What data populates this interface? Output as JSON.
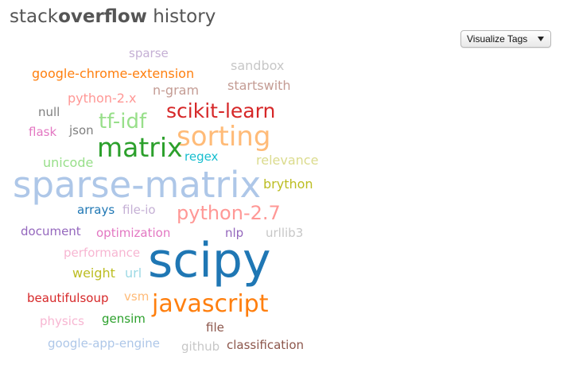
{
  "header": {
    "title_prefix": "stack",
    "title_bold": "overflow",
    "title_suffix": " history"
  },
  "controls": {
    "visualize_label": "Visualize Tags"
  },
  "tags": [
    {
      "text": "sparse",
      "color": "#c5b0d5"
    },
    {
      "text": "sandbox",
      "color": "#c7c7c7"
    },
    {
      "text": "google-chrome-extension",
      "color": "#ff7f0e"
    },
    {
      "text": "startswith",
      "color": "#c49c94"
    },
    {
      "text": "python-2.x",
      "color": "#ff9896"
    },
    {
      "text": "n-gram",
      "color": "#c49c94"
    },
    {
      "text": "null",
      "color": "#7f7f7f"
    },
    {
      "text": "scikit-learn",
      "color": "#d62728"
    },
    {
      "text": "tf-idf",
      "color": "#98df8a"
    },
    {
      "text": "flask",
      "color": "#e377c2"
    },
    {
      "text": "json",
      "color": "#7f7f7f"
    },
    {
      "text": "sorting",
      "color": "#ffbb78"
    },
    {
      "text": "matrix",
      "color": "#2ca02c"
    },
    {
      "text": "regex",
      "color": "#17becf"
    },
    {
      "text": "relevance",
      "color": "#dbdb8d"
    },
    {
      "text": "unicode",
      "color": "#98df8a"
    },
    {
      "text": "sparse-matrix",
      "color": "#aec7e8"
    },
    {
      "text": "brython",
      "color": "#bcbd22"
    },
    {
      "text": "arrays",
      "color": "#1f77b4"
    },
    {
      "text": "file-io",
      "color": "#c5b0d5"
    },
    {
      "text": "python-2.7",
      "color": "#ff9896"
    },
    {
      "text": "document",
      "color": "#9467bd"
    },
    {
      "text": "optimization",
      "color": "#e377c2"
    },
    {
      "text": "nlp",
      "color": "#9467bd"
    },
    {
      "text": "urllib3",
      "color": "#c7c7c7"
    },
    {
      "text": "performance",
      "color": "#f7b6d2"
    },
    {
      "text": "scipy",
      "color": "#1f77b4"
    },
    {
      "text": "weight",
      "color": "#bcbd22"
    },
    {
      "text": "url",
      "color": "#9edae5"
    },
    {
      "text": "beautifulsoup",
      "color": "#d62728"
    },
    {
      "text": "vsm",
      "color": "#ffbb78"
    },
    {
      "text": "javascript",
      "color": "#ff7f0e"
    },
    {
      "text": "physics",
      "color": "#f7b6d2"
    },
    {
      "text": "gensim",
      "color": "#2ca02c"
    },
    {
      "text": "file",
      "color": "#8c564b"
    },
    {
      "text": "google-app-engine",
      "color": "#aec7e8"
    },
    {
      "text": "github",
      "color": "#c7c7c7"
    },
    {
      "text": "classification",
      "color": "#8c564b"
    }
  ]
}
